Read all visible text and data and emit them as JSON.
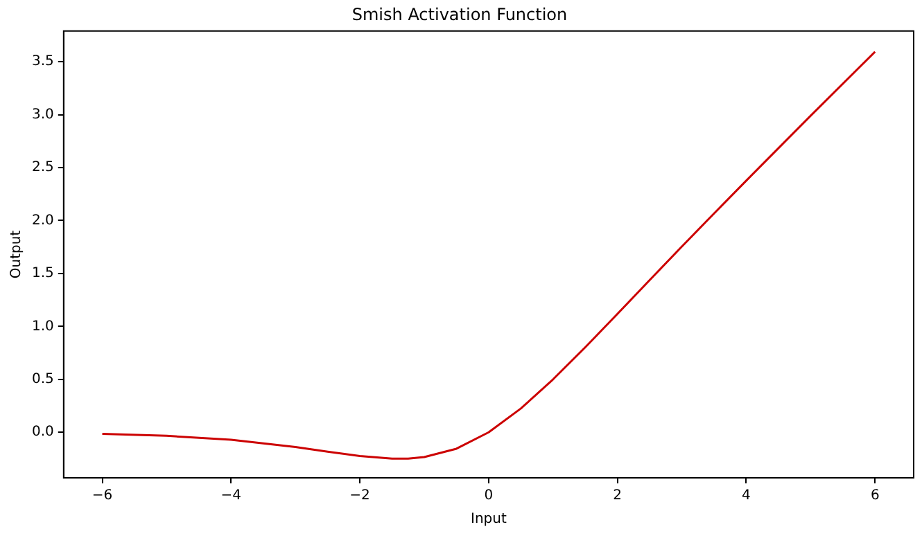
{
  "chart_data": {
    "type": "line",
    "title": "Smish Activation Function",
    "xlabel": "Input",
    "ylabel": "Output",
    "x": [
      -6,
      -5,
      -4,
      -3,
      -2.5,
      -2,
      -1.5,
      -1.25,
      -1,
      -0.5,
      0,
      0.5,
      1,
      1.5,
      2,
      2.5,
      3,
      3.5,
      4,
      5,
      6
    ],
    "series": [
      {
        "color": "#cc0000",
        "values": [
          -0.015,
          -0.033,
          -0.071,
          -0.139,
          -0.183,
          -0.224,
          -0.249,
          -0.248,
          -0.234,
          -0.155,
          0,
          0.225,
          0.5,
          0.803,
          1.118,
          1.437,
          1.754,
          2.067,
          2.377,
          2.99,
          3.594
        ]
      }
    ],
    "xlim": [
      -6.6,
      6.6
    ],
    "xticks": [
      {
        "value": -6,
        "label": "−6"
      },
      {
        "value": -4,
        "label": "−4"
      },
      {
        "value": -2,
        "label": "−2"
      },
      0,
      2,
      4,
      6
    ],
    "ylim": [
      -0.43,
      3.79
    ],
    "yticks": [
      {
        "value": 0,
        "label": "0.0"
      },
      {
        "value": 0.5,
        "label": "0.5"
      },
      {
        "value": 1,
        "label": "1.0"
      },
      {
        "value": 1.5,
        "label": "1.5"
      },
      {
        "value": 2,
        "label": "2.0"
      },
      {
        "value": 2.5,
        "label": "2.5"
      },
      {
        "value": 3,
        "label": "3.0"
      },
      {
        "value": 3.5,
        "label": "3.5"
      }
    ],
    "grid": false,
    "legend": false,
    "marker": "none",
    "line_style": "solid"
  }
}
